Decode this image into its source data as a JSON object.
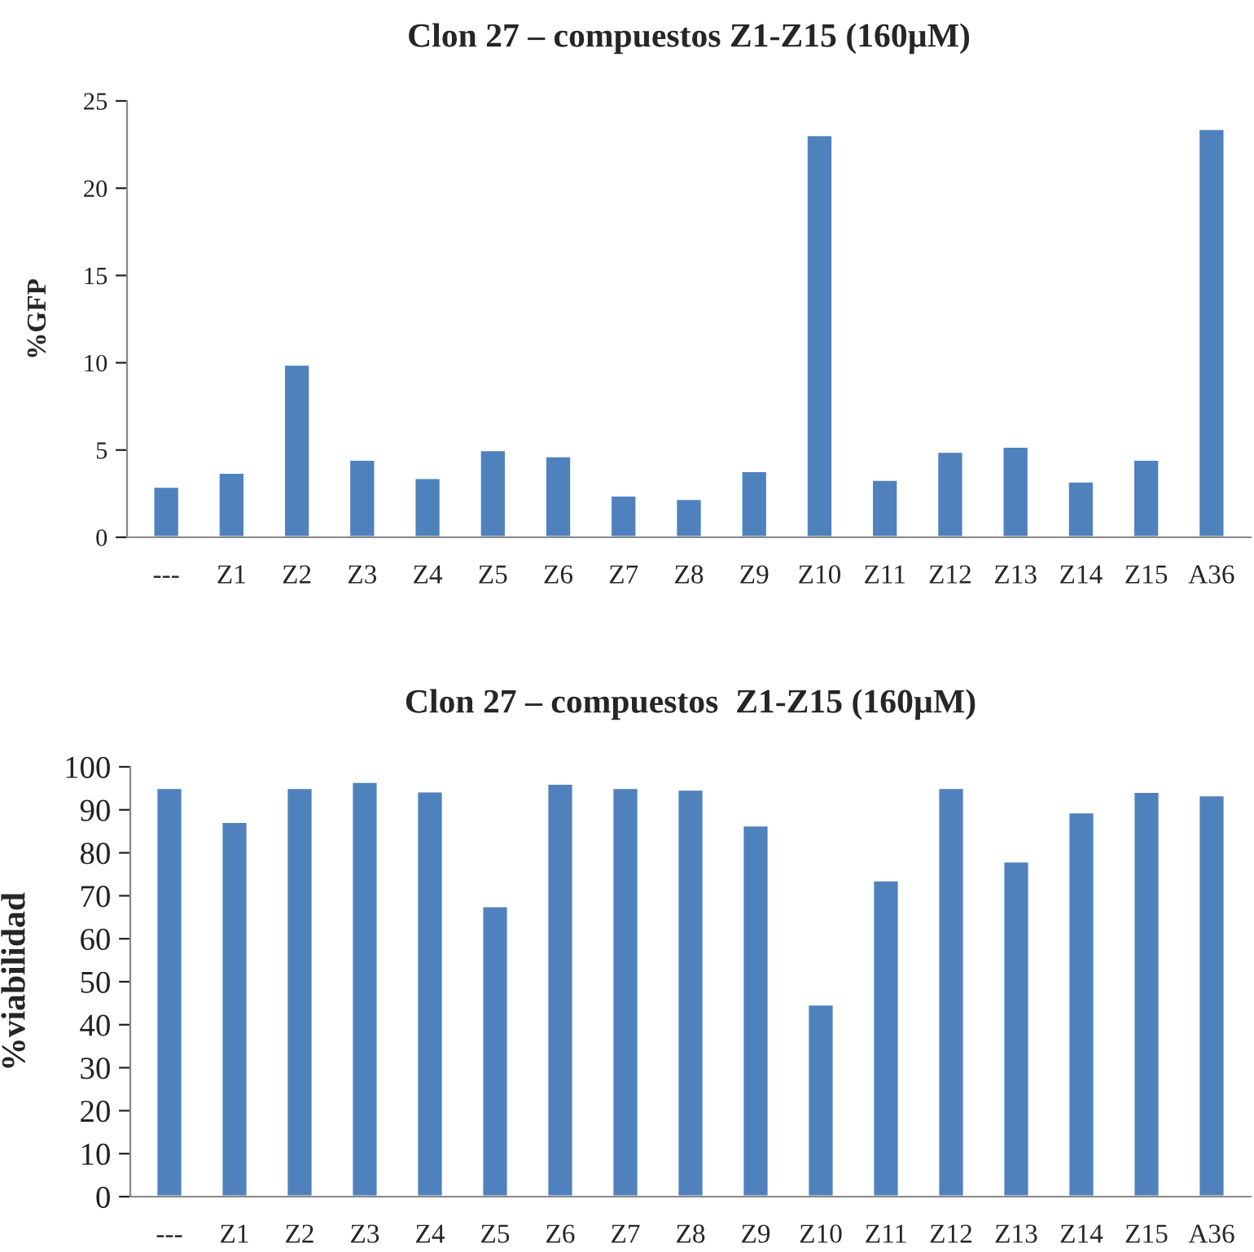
{
  "chart_data": [
    {
      "type": "bar",
      "title": "Clon 27 – compuestos Z1-Z15 (160µM)",
      "ylabel": "%GFP",
      "categories": [
        "---",
        "Z1",
        "Z2",
        "Z3",
        "Z4",
        "Z5",
        "Z6",
        "Z7",
        "Z8",
        "Z9",
        "Z10",
        "Z11",
        "Z12",
        "Z13",
        "Z14",
        "Z15",
        "A36"
      ],
      "values": [
        2.9,
        3.7,
        9.9,
        4.45,
        3.4,
        5.0,
        4.65,
        2.4,
        2.2,
        3.8,
        23.05,
        3.3,
        4.9,
        5.2,
        3.2,
        4.45,
        23.4
      ],
      "color": "#4f81bd",
      "ylim": [
        0,
        25
      ],
      "yticks": [
        0,
        5,
        10,
        15,
        20,
        25
      ],
      "grid": false,
      "legend": false
    },
    {
      "type": "bar",
      "title": "Clon 27 – compuestos  Z1-Z15 (160µM)",
      "ylabel": "%viabilidad",
      "categories": [
        "---",
        "Z1",
        "Z2",
        "Z3",
        "Z4",
        "Z5",
        "Z6",
        "Z7",
        "Z8",
        "Z9",
        "Z10",
        "Z11",
        "Z12",
        "Z13",
        "Z14",
        "Z15",
        "A36"
      ],
      "values": [
        95.1,
        87.2,
        95.1,
        96.5,
        94.3,
        67.6,
        96.1,
        95.1,
        94.7,
        86.4,
        44.7,
        73.6,
        95.1,
        78.0,
        89.4,
        94.2,
        93.4
      ],
      "color": "#4f81bd",
      "ylim": [
        0,
        100
      ],
      "yticks": [
        0,
        10,
        20,
        30,
        40,
        50,
        60,
        70,
        80,
        90,
        100
      ],
      "grid": false,
      "legend": false
    }
  ]
}
